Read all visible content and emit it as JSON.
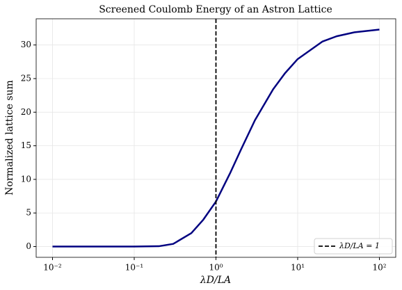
{
  "chart_data": {
    "type": "line",
    "title": "Screened Coulomb Energy of an Astron Lattice",
    "xlabel": "λD/LA",
    "ylabel": "Normalized lattice sum",
    "x": [
      0.01,
      0.1,
      0.2,
      0.3,
      0.5,
      0.7,
      1,
      1.5,
      2,
      3,
      5,
      7,
      10,
      20,
      30,
      50,
      100
    ],
    "series": [
      {
        "name": "Normalized lattice sum",
        "color": "#000080",
        "values": [
          0,
          0,
          0.05,
          0.4,
          2,
          4,
          6.7,
          11,
          14.3,
          18.8,
          23.4,
          25.8,
          27.9,
          30.5,
          31.3,
          31.9,
          32.3
        ]
      }
    ],
    "vlines": [
      {
        "x": 1,
        "name": "λD/LA = 1",
        "color": "#000000"
      }
    ],
    "xscale": "log",
    "xlim": [
      0.00631,
      158.5
    ],
    "ylim": [
      -1.6,
      33.9
    ],
    "xticks": [
      {
        "value": 0.01,
        "label": "10⁻²"
      },
      {
        "value": 0.1,
        "label": "10⁻¹"
      },
      {
        "value": 1,
        "label": "10⁰"
      },
      {
        "value": 10,
        "label": "10¹"
      },
      {
        "value": 100,
        "label": "10²"
      }
    ],
    "yticks": [
      0,
      5,
      10,
      15,
      20,
      25,
      30
    ],
    "grid": true,
    "legend": "lower right"
  }
}
